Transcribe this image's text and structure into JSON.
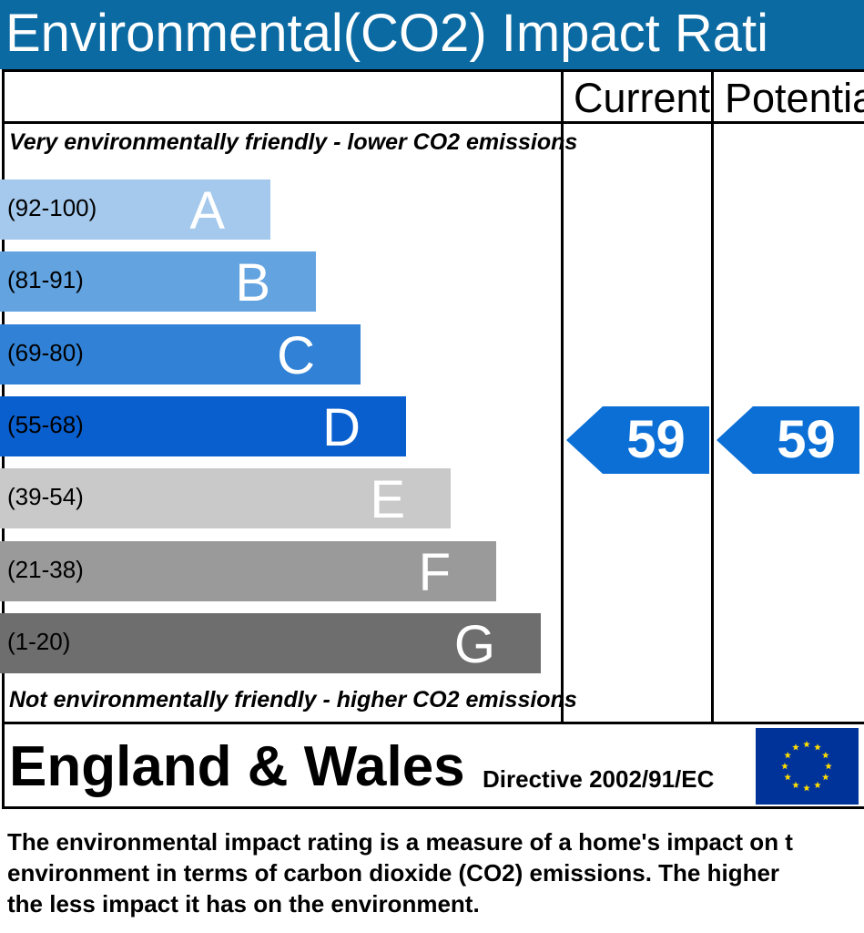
{
  "title": "Environmental(CO2) Impact Rati",
  "columns": {
    "current": "Current",
    "potential": "Potentia"
  },
  "top_note": "Very environmentally friendly - lower CO2 emissions",
  "bottom_note": "Not environmentally friendly - higher CO2 emissions",
  "colors": {
    "title_bar": "#0b6aa2",
    "arrow": "#0b6fd6",
    "eu_flag": "#003399",
    "eu_stars": "#ffdd00"
  },
  "chart_data": {
    "type": "bar",
    "categories": [
      "A",
      "B",
      "C",
      "D",
      "E",
      "F",
      "G"
    ],
    "ranges": [
      "(92-100)",
      "(81-91)",
      "(69-80)",
      "(55-68)",
      "(39-54)",
      "(21-38)",
      "(1-20)"
    ],
    "band_colors": [
      "#a4c9ec",
      "#62a3e0",
      "#3182d6",
      "#0a5fcf",
      "#c9c9c9",
      "#9a9a9a",
      "#6e6e6e"
    ],
    "current_rating": 59,
    "potential_rating": 59,
    "current_band": "D",
    "potential_band": "D"
  },
  "footer": {
    "country": "England & Wales",
    "directive": "Directive 2002/91/EC"
  },
  "description": [
    "The environmental impact rating is a measure of a home's impact on t",
    "environment in terms of carbon dioxide (CO2) emissions. The higher",
    "the less impact it has on the environment."
  ]
}
